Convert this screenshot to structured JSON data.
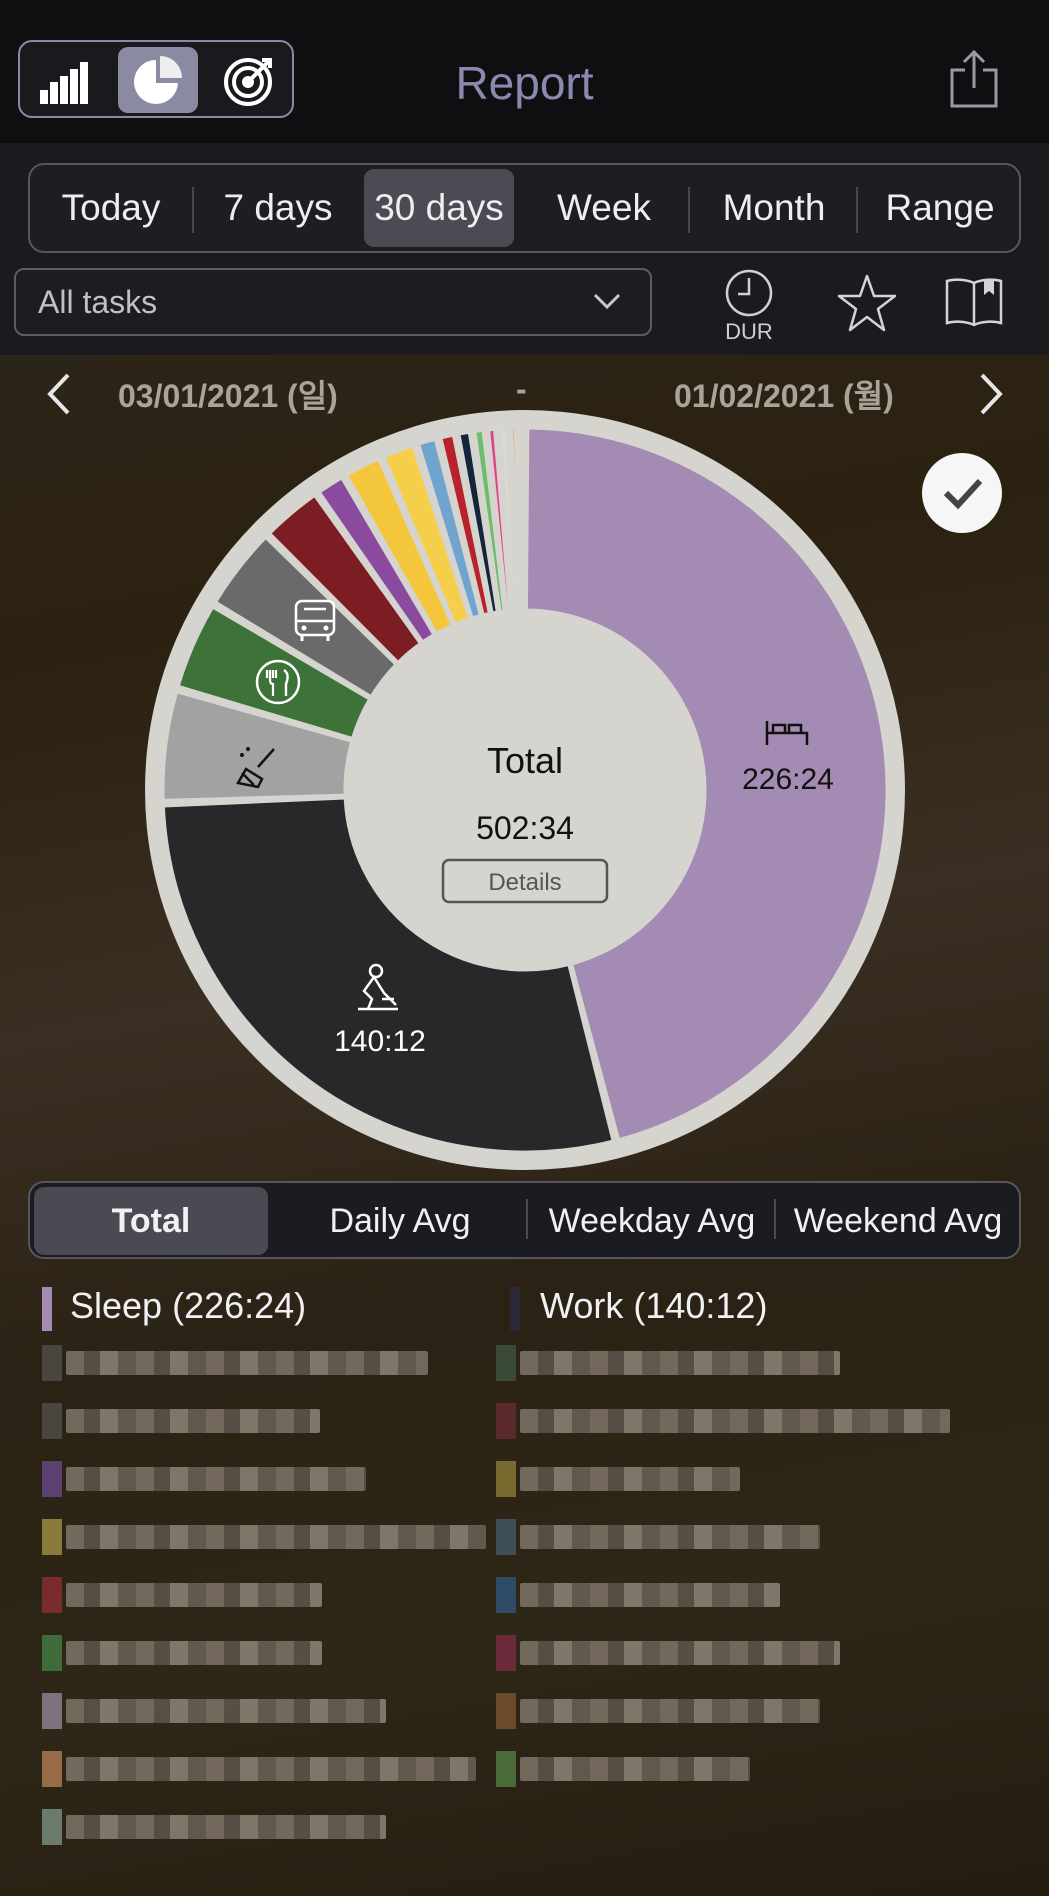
{
  "header": {
    "title": "Report",
    "view_modes": [
      "bar-chart",
      "pie-chart",
      "target"
    ],
    "active_view": "pie-chart"
  },
  "range_tabs": {
    "items": [
      "Today",
      "7 days",
      "30 days",
      "Week",
      "Month",
      "Range"
    ],
    "active": "30 days"
  },
  "task_filter": {
    "value": "All tasks"
  },
  "duration_label": "DUR",
  "date_range": {
    "start": "03/01/2021 (일)",
    "separator": "-",
    "end": "01/02/2021 (월)"
  },
  "center": {
    "title": "Total",
    "value": "502:34",
    "details_label": "Details"
  },
  "chart_data": {
    "type": "pie",
    "total": "502:34",
    "slices": [
      {
        "name": "Sleep",
        "value": 226.4,
        "label": "226:24",
        "color": "#a38bb3",
        "icon": "bed-icon"
      },
      {
        "name": "Work",
        "value": 140.2,
        "label": "140:12",
        "color": "#28272a",
        "icon": "worker-icon"
      },
      {
        "value": 25,
        "color": "#a2a2a2",
        "icon": "broom-icon"
      },
      {
        "value": 20,
        "color": "#3d7339",
        "icon": "fork-knife-icon"
      },
      {
        "value": 19,
        "color": "#6a6a6a",
        "icon": "bus-icon"
      },
      {
        "value": 14,
        "color": "#7b1d22"
      },
      {
        "value": 7,
        "color": "#8a4aa0"
      },
      {
        "value": 9,
        "color": "#f4c63c"
      },
      {
        "value": 8,
        "color": "#f6cf4a"
      },
      {
        "value": 5,
        "color": "#6fa4cf"
      },
      {
        "value": 4,
        "color": "#b8232b"
      },
      {
        "value": 3.5,
        "color": "#13253a"
      },
      {
        "value": 3,
        "color": "#6cbd6b"
      },
      {
        "value": 2.5,
        "color": "#e3408c"
      },
      {
        "value": 2.5,
        "color": "#d9d9d9"
      },
      {
        "value": 2,
        "color": "#f2a14f"
      },
      {
        "value": 1.5,
        "color": "#d4c08a"
      }
    ]
  },
  "summary_tabs": {
    "items": [
      "Total",
      "Daily Avg",
      "Weekday Avg",
      "Weekend Avg"
    ],
    "active": "Total"
  },
  "legend": [
    {
      "label": "Sleep (226:24)",
      "color": "#a38bb3"
    },
    {
      "label": "Work (140:12)",
      "color": "#2a2836"
    }
  ],
  "blurred_rows": {
    "left_colors": [
      "#4a4540",
      "#4a4540",
      "#5b4270",
      "#8a7a3a",
      "#7a2c2c",
      "#3f6a3a",
      "#7e7280",
      "#9a6b49",
      "#6c7a6c"
    ],
    "right_colors": [
      "#3a4a36",
      "#5a2a2a",
      "#7a6a30",
      "#3e4f58",
      "#2f4c66",
      "#6a2a3a",
      "#6a4c2a",
      "#4a6a3a"
    ]
  }
}
